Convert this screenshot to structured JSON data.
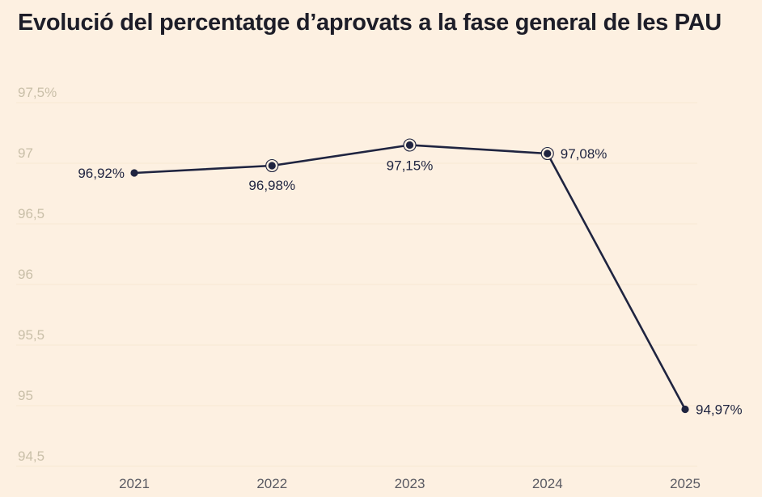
{
  "title": "Evolució del percentatge d’aprovats a la fase general de les PAU",
  "chart_data": {
    "type": "line",
    "x": [
      "2021",
      "2022",
      "2023",
      "2024",
      "2025"
    ],
    "series": [
      {
        "values": [
          96.92,
          96.98,
          97.15,
          97.08,
          94.97
        ]
      }
    ],
    "data_labels": [
      "96,92%",
      "96,98%",
      "97,15%",
      "97,08%",
      "94,97%"
    ],
    "y_ticks": [
      97.5,
      97,
      96.5,
      96,
      95.5,
      95,
      94.5
    ],
    "y_tick_labels": [
      "97,5%",
      "97",
      "96,5",
      "96",
      "95,5",
      "95",
      "94,5"
    ],
    "ylim": [
      94.5,
      97.5
    ],
    "grid": true,
    "colors": {
      "line": "#1f2440",
      "grid": "#f6e7d3",
      "tick": "#c9bfa8",
      "background": "#fdf0e1"
    }
  }
}
